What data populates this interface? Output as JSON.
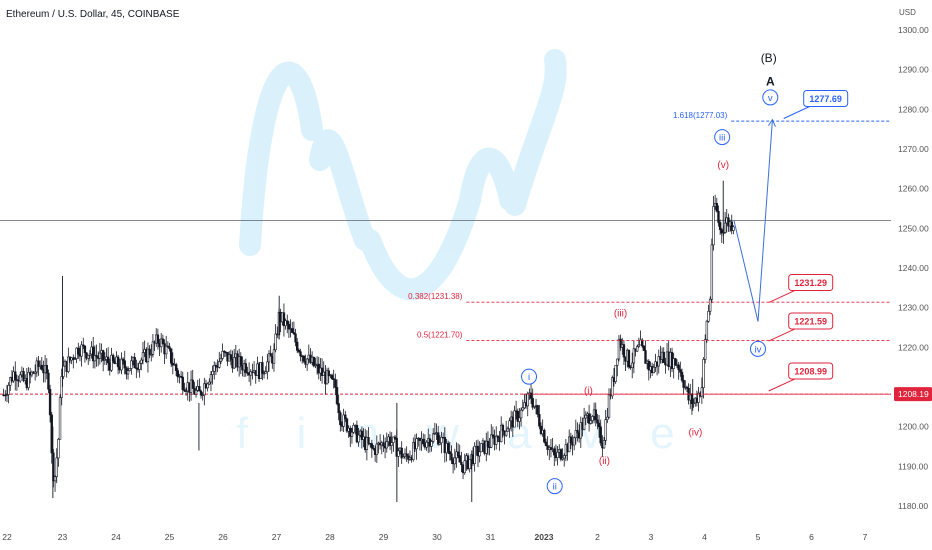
{
  "header": {
    "title": "Ethereum / U.S. Dollar, 45, COINBASE",
    "axis_unit": "USD"
  },
  "watermark": {
    "text": "f i n w a v e",
    "color": "#5bc3f5"
  },
  "colors": {
    "candle": "#131722",
    "blue": "#2962ff",
    "blue_wave": "#3a6fd8",
    "red": "#e0243b",
    "red_wave": "#e0243b",
    "black_label": "#131722",
    "current_price_bg": "#e0243b",
    "grid_line": "#9598a1"
  },
  "chart_data": {
    "type": "candlestick",
    "title": "Ethereum / U.S. Dollar, 45, COINBASE",
    "y_unit": "USD",
    "ylim": [
      1176,
      1305
    ],
    "y_ticks": [
      1180,
      1190,
      1200,
      1210,
      1220,
      1230,
      1240,
      1250,
      1260,
      1270,
      1280,
      1290,
      1300
    ],
    "y_tick_labels": [
      "1180.00",
      "1190.00",
      "1200.00",
      "1210.00",
      "1220.00",
      "1230.00",
      "1240.00",
      "1250.00",
      "1260.00",
      "1270.00",
      "1280.00",
      "1290.00",
      "1300.00"
    ],
    "x_ticks": [
      {
        "label": "22",
        "day": 0,
        "bold": false
      },
      {
        "label": "23",
        "day": 1,
        "bold": false
      },
      {
        "label": "24",
        "day": 2,
        "bold": false
      },
      {
        "label": "25",
        "day": 3,
        "bold": false
      },
      {
        "label": "26",
        "day": 4,
        "bold": false
      },
      {
        "label": "27",
        "day": 5,
        "bold": false
      },
      {
        "label": "28",
        "day": 6,
        "bold": false
      },
      {
        "label": "29",
        "day": 7,
        "bold": false
      },
      {
        "label": "30",
        "day": 8,
        "bold": false
      },
      {
        "label": "31",
        "day": 9,
        "bold": false
      },
      {
        "label": "2023",
        "day": 10,
        "bold": true
      },
      {
        "label": "2",
        "day": 11,
        "bold": false
      },
      {
        "label": "3",
        "day": 12,
        "bold": false
      },
      {
        "label": "4",
        "day": 13,
        "bold": false
      },
      {
        "label": "5",
        "day": 14,
        "bold": false
      },
      {
        "label": "6",
        "day": 15,
        "bold": false
      },
      {
        "label": "7",
        "day": 16,
        "bold": false
      }
    ],
    "price_path": [
      [
        -0.1,
        1208
      ],
      [
        0.1,
        1214
      ],
      [
        0.3,
        1211
      ],
      [
        0.6,
        1216
      ],
      [
        0.75,
        1211
      ],
      [
        0.8,
        1192
      ],
      [
        0.85,
        1186
      ],
      [
        0.93,
        1198
      ],
      [
        0.98,
        1214
      ],
      [
        1.1,
        1216
      ],
      [
        1.3,
        1220
      ],
      [
        1.6,
        1218
      ],
      [
        1.9,
        1216
      ],
      [
        2.2,
        1215
      ],
      [
        2.5,
        1217
      ],
      [
        2.8,
        1222
      ],
      [
        3.0,
        1218
      ],
      [
        3.2,
        1212
      ],
      [
        3.55,
        1208
      ],
      [
        3.7,
        1212
      ],
      [
        4.0,
        1218
      ],
      [
        4.3,
        1216
      ],
      [
        4.7,
        1214
      ],
      [
        4.95,
        1218
      ],
      [
        5.05,
        1228
      ],
      [
        5.25,
        1224
      ],
      [
        5.5,
        1218
      ],
      [
        5.8,
        1214
      ],
      [
        6.1,
        1210
      ],
      [
        6.2,
        1202
      ],
      [
        6.5,
        1198
      ],
      [
        6.8,
        1194
      ],
      [
        7.1,
        1197
      ],
      [
        7.4,
        1192
      ],
      [
        7.7,
        1196
      ],
      [
        8.0,
        1198
      ],
      [
        8.2,
        1194
      ],
      [
        8.5,
        1190
      ],
      [
        8.7,
        1193
      ],
      [
        9.0,
        1196
      ],
      [
        9.3,
        1200
      ],
      [
        9.6,
        1204
      ],
      [
        9.75,
        1208
      ],
      [
        9.85,
        1204
      ],
      [
        10.05,
        1196
      ],
      [
        10.2,
        1192
      ],
      [
        10.5,
        1196
      ],
      [
        10.7,
        1200
      ],
      [
        10.9,
        1204
      ],
      [
        11.0,
        1199
      ],
      [
        11.1,
        1196
      ],
      [
        11.2,
        1206
      ],
      [
        11.3,
        1212
      ],
      [
        11.4,
        1222
      ],
      [
        11.6,
        1216
      ],
      [
        11.8,
        1220
      ],
      [
        12.0,
        1214
      ],
      [
        12.2,
        1218
      ],
      [
        12.5,
        1216
      ],
      [
        12.6,
        1212
      ],
      [
        12.7,
        1207
      ],
      [
        12.8,
        1206
      ],
      [
        12.95,
        1210
      ],
      [
        13.05,
        1228
      ],
      [
        13.1,
        1230
      ],
      [
        13.15,
        1252
      ],
      [
        13.2,
        1256
      ],
      [
        13.3,
        1249
      ],
      [
        13.4,
        1252
      ],
      [
        13.5,
        1251
      ],
      [
        13.55,
        1252
      ]
    ],
    "fib_levels": [
      {
        "label": "1.618(1277.03)",
        "value": 1277.03,
        "color": "#2962ff"
      },
      {
        "label": "0.382(1231.38)",
        "value": 1231.38,
        "color": "#e0243b"
      },
      {
        "label": "0.5(1221.70)",
        "value": 1221.7,
        "color": "#e0243b"
      }
    ],
    "horizontal_lines": [
      {
        "value": 1208.19,
        "color": "#e0243b"
      },
      {
        "value": 1252.0,
        "color": "#5d606b"
      }
    ],
    "current_price": {
      "label": "1208.19",
      "value": 1208.19
    },
    "price_callouts": [
      {
        "label": "1277.69",
        "value": 1277.69,
        "color": "#2962ff",
        "day": 14.48
      },
      {
        "label": "1231.29",
        "value": 1231.29,
        "color": "#e0243b",
        "day": 14.2
      },
      {
        "label": "1221.59",
        "value": 1221.59,
        "color": "#e0243b",
        "day": 14.2
      },
      {
        "label": "1208.99",
        "value": 1208.99,
        "color": "#e0243b",
        "day": 14.2
      }
    ],
    "projection_path": [
      [
        13.55,
        1252
      ],
      [
        14.0,
        1226.5
      ],
      [
        14.27,
        1277.4
      ]
    ],
    "wave_labels": [
      {
        "text": "(B)",
        "day": 14.2,
        "value": 1293,
        "color": "#131722",
        "circled": false
      },
      {
        "text": "A",
        "day": 14.23,
        "value": 1287,
        "color": "#131722",
        "circled": false
      },
      {
        "text": "v",
        "day": 14.23,
        "value": 1283,
        "color": "#2962ff",
        "circled": true
      },
      {
        "text": "iii",
        "day": 13.33,
        "value": 1273,
        "color": "#2962ff",
        "circled": true
      },
      {
        "text": "iv",
        "day": 14.0,
        "value": 1219.6,
        "color": "#2962ff",
        "circled": true
      },
      {
        "text": "i",
        "day": 9.72,
        "value": 1212.6,
        "color": "#2962ff",
        "circled": true
      },
      {
        "text": "ii",
        "day": 10.2,
        "value": 1185,
        "color": "#2962ff",
        "circled": true
      },
      {
        "text": "(v)",
        "day": 13.35,
        "value": 1266.2,
        "color": "#e0243b",
        "circled": false
      },
      {
        "text": "(iii)",
        "day": 11.43,
        "value": 1228.8,
        "color": "#e0243b",
        "circled": false
      },
      {
        "text": "(i)",
        "day": 10.83,
        "value": 1209.3,
        "color": "#e0243b",
        "circled": false
      },
      {
        "text": "(iv)",
        "day": 12.83,
        "value": 1198.8,
        "color": "#e0243b",
        "circled": false
      },
      {
        "text": "(ii)",
        "day": 11.13,
        "value": 1191.6,
        "color": "#e0243b",
        "circled": false
      }
    ]
  }
}
